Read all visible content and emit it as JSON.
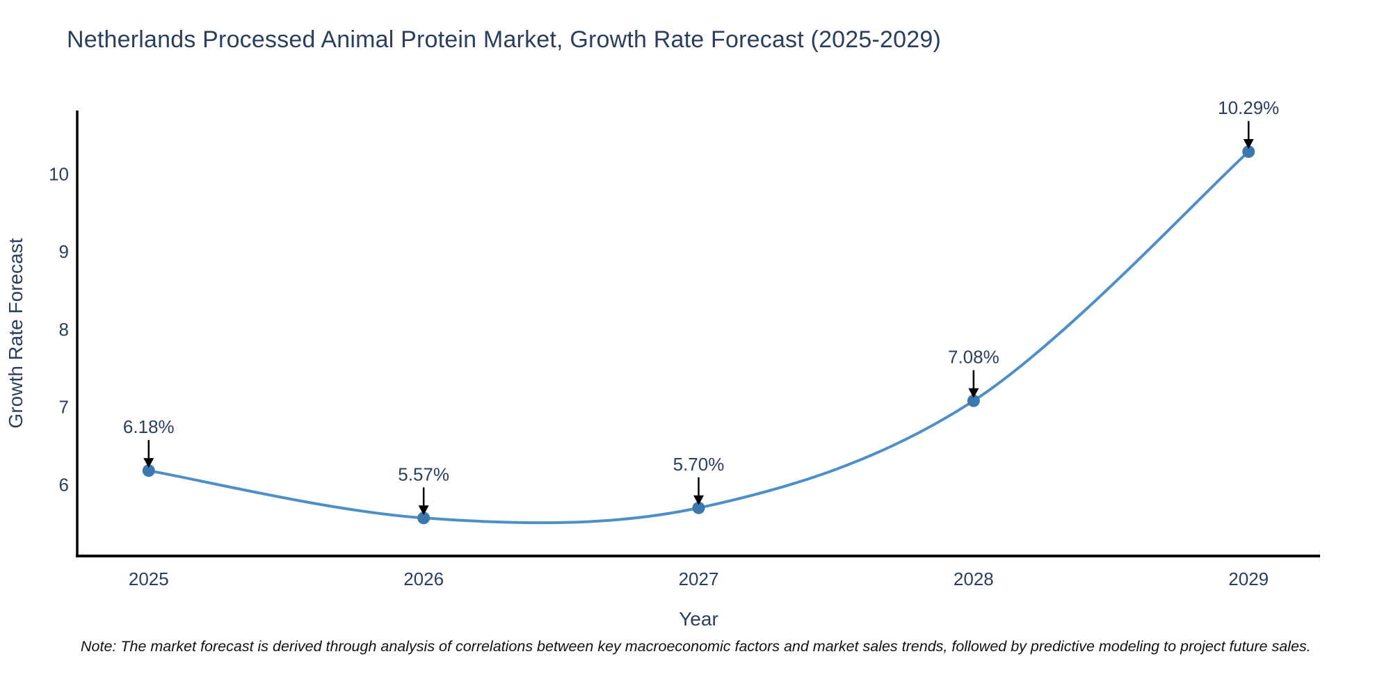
{
  "title": "Netherlands Processed Animal Protein Market, Growth Rate Forecast (2025-2029)",
  "note": "Note: The market forecast is derived through analysis of correlations between key macroeconomic factors and market sales trends, followed by predictive modeling to project future sales.",
  "chart_data": {
    "type": "line",
    "title": "Netherlands Processed Animal Protein Market, Growth Rate Forecast (2025-2029)",
    "xlabel": "Year",
    "ylabel": "Growth Rate Forecast",
    "x": [
      2025,
      2026,
      2027,
      2028,
      2029
    ],
    "values": [
      6.18,
      5.57,
      5.7,
      7.08,
      10.29
    ],
    "point_labels": [
      "6.18%",
      "5.57%",
      "5.70%",
      "7.08%",
      "10.29%"
    ],
    "xticks": [
      "2025",
      "2026",
      "2027",
      "2028",
      "2029"
    ],
    "yticks": [
      6,
      7,
      8,
      9,
      10
    ],
    "xlim": [
      2024.74,
      2029.26
    ],
    "ylim": [
      5.08,
      10.82
    ],
    "grid": false,
    "legend": "none",
    "line_shape": "spline",
    "colors": {
      "line": "#4e8fc7",
      "marker": "#3a78ad",
      "axis": "#000000",
      "text": "#2a3f5f",
      "annotation_text": "#2a3f5f",
      "annotation_arrow": "#000000",
      "background": "#ffffff"
    }
  }
}
